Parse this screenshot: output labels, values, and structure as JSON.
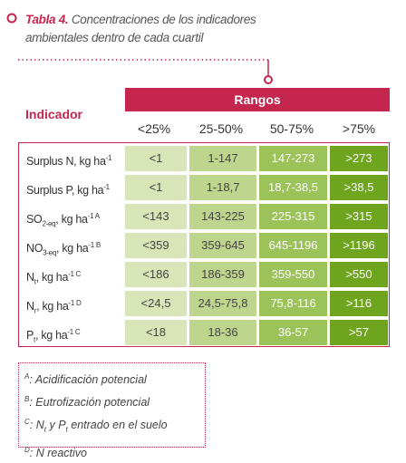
{
  "title": {
    "label": "Tabla 4.",
    "text": "Concentraciones de los indicadores ambientales dentro de cada cuartil"
  },
  "table": {
    "group_header": "Rangos",
    "row_header": "Indicador",
    "columns": [
      "<25%",
      "25-50%",
      "50-75%",
      ">75%"
    ],
    "rows": [
      {
        "indicator": [
          "Surplus N, kg ha",
          "-1"
        ],
        "cells": [
          "<1",
          "1-147",
          "147-273",
          ">273"
        ]
      },
      {
        "indicator": [
          "Surplus P, kg ha",
          "-1"
        ],
        "cells": [
          "<1",
          "1-18,7",
          "18,7-38,5",
          ">38,5"
        ]
      },
      {
        "indicator": [
          "SO",
          "2-eq",
          ", kg ha",
          "-1 A"
        ],
        "cells": [
          "<143",
          "143-225",
          "225-315",
          ">315"
        ]
      },
      {
        "indicator": [
          "NO",
          "3-eq",
          ", kg ha",
          "-1 B"
        ],
        "cells": [
          "<359",
          "359-645",
          "645-1196",
          ">1196"
        ]
      },
      {
        "indicator": [
          "N",
          "t",
          ", kg ha",
          "-1 C"
        ],
        "cells": [
          "<186",
          "186-359",
          "359-550",
          ">550"
        ]
      },
      {
        "indicator": [
          "N",
          "r",
          ", kg ha",
          "-1 D"
        ],
        "cells": [
          "<24,5",
          "24,5-75,8",
          "75,8-116",
          ">116"
        ]
      },
      {
        "indicator": [
          "P",
          "t",
          ", kg ha",
          "-1 C"
        ],
        "cells": [
          "<18",
          "18-36",
          "36-57",
          ">57"
        ]
      }
    ]
  },
  "notes": [
    [
      "A",
      ": Acidificación potencial"
    ],
    [
      "B",
      ": Eutrofización potencial"
    ],
    [
      "C",
      ": N",
      "t",
      " y P",
      "t",
      " entrado en el suelo"
    ],
    [
      "D",
      ": N reactivo"
    ]
  ]
}
